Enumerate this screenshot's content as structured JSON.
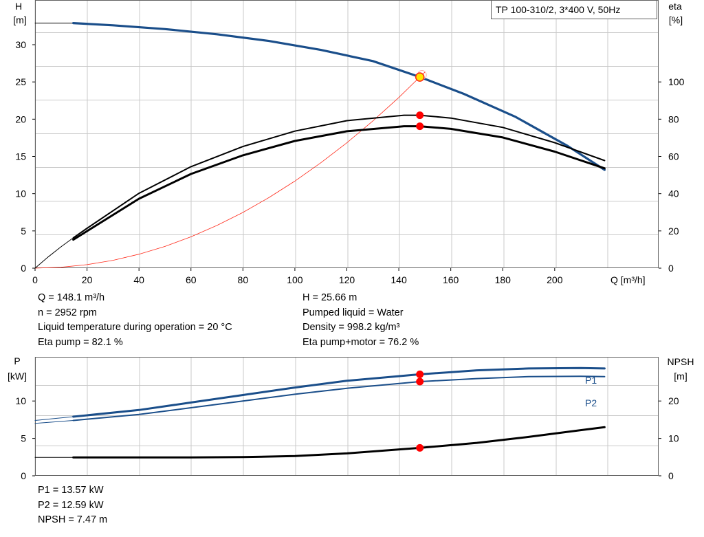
{
  "chart_data": [
    {
      "type": "line",
      "id": "head-efficiency",
      "title_box": "TP 100-310/2, 3*400 V, 50Hz",
      "y_left_label": [
        "H",
        "[m]"
      ],
      "y_right_label": [
        "eta",
        "[%]"
      ],
      "x_label": "Q [m³/h]",
      "xlim": [
        0,
        240
      ],
      "ylim_left": [
        0,
        36
      ],
      "ylim_right": [
        0,
        144
      ],
      "x_ticks": [
        "0",
        "20",
        "40",
        "60",
        "80",
        "100",
        "120",
        "140",
        "160",
        "180",
        "200"
      ],
      "x_tick_values": [
        0,
        20,
        40,
        60,
        80,
        100,
        120,
        140,
        160,
        180,
        200
      ],
      "y_left_ticks": [
        "0",
        "5",
        "10",
        "15",
        "20",
        "25",
        "30"
      ],
      "y_left_tick_values": [
        0,
        5,
        10,
        15,
        20,
        25,
        30
      ],
      "y_right_ticks": [
        "0",
        "20",
        "40",
        "60",
        "80",
        "100"
      ],
      "y_right_tick_values": [
        0,
        20,
        40,
        60,
        80,
        100
      ],
      "grid": true,
      "series": [
        {
          "role": "head-ext",
          "axis": "left",
          "color": "#000000",
          "x": [
            0,
            7,
            14.7
          ],
          "y": [
            32.9,
            32.9,
            32.9
          ]
        },
        {
          "role": "head",
          "axis": "left",
          "color": "#1a4e8a",
          "x": [
            14.7,
            30,
            50,
            70,
            90,
            110,
            130,
            148.1,
            165,
            185,
            205,
            219.2
          ],
          "y": [
            32.9,
            32.6,
            32.1,
            31.4,
            30.5,
            29.3,
            27.8,
            25.66,
            23.4,
            20.3,
            16.4,
            13.2
          ]
        },
        {
          "role": "system-curve",
          "axis": "left",
          "color": "#ff2a1a",
          "x": [
            0,
            10,
            20,
            30,
            40,
            50,
            60,
            70,
            80,
            90,
            100,
            110,
            120,
            130,
            140,
            148.1,
            150
          ],
          "y": [
            0,
            0.12,
            0.47,
            1.05,
            1.87,
            2.92,
            4.21,
            5.73,
            7.48,
            9.47,
            11.69,
            14.15,
            16.83,
            19.76,
            22.91,
            25.66,
            26.3
          ]
        },
        {
          "role": "eta-ext",
          "axis": "right",
          "color": "#000000",
          "x": [
            0,
            5,
            10,
            14.7
          ],
          "y": [
            0,
            6,
            11.5,
            16.3
          ]
        },
        {
          "role": "eta-pump",
          "axis": "right",
          "color": "#000000",
          "x": [
            14.7,
            20,
            40,
            60,
            80,
            100,
            120,
            142,
            148.1,
            160,
            180,
            200,
            219.2
          ],
          "y": [
            16.3,
            21.4,
            40.2,
            54.5,
            65.3,
            73.6,
            79.2,
            82.1,
            82.1,
            80.6,
            75.6,
            67.4,
            57.8
          ]
        },
        {
          "role": "eta-pump-motor",
          "axis": "right",
          "color": "#000000",
          "x": [
            14.7,
            20,
            40,
            60,
            80,
            100,
            120,
            142,
            148.1,
            160,
            180,
            200,
            219.2
          ],
          "y": [
            15.3,
            19.9,
            37.3,
            50.6,
            60.6,
            68.3,
            73.5,
            76.2,
            76.2,
            74.8,
            70.2,
            62.6,
            53.6
          ]
        }
      ],
      "markers": [
        {
          "x": 148.1,
          "y": 25.66,
          "axis": "left",
          "style": "operating-point"
        },
        {
          "x": 148.1,
          "y": 82.1,
          "axis": "right",
          "style": "red"
        },
        {
          "x": 148.1,
          "y": 76.2,
          "axis": "right",
          "style": "red"
        }
      ]
    },
    {
      "type": "line",
      "id": "power-npsh",
      "y_left_label": [
        "P",
        "[kW]"
      ],
      "y_right_label": [
        "NPSH",
        "[m]"
      ],
      "xlim": [
        0,
        240
      ],
      "ylim_left": [
        0,
        15.9
      ],
      "ylim_right": [
        0,
        31.8
      ],
      "y_left_ticks": [
        "0",
        "5",
        "10"
      ],
      "y_left_tick_values": [
        0,
        5,
        10
      ],
      "y_right_ticks": [
        "0",
        "10",
        "20"
      ],
      "y_right_tick_values": [
        0,
        10,
        20
      ],
      "grid": true,
      "series": [
        {
          "role": "p1-ext",
          "axis": "left",
          "color": "#1a4e8a",
          "x": [
            0,
            14.7
          ],
          "y": [
            7.4,
            7.9
          ]
        },
        {
          "role": "p1",
          "axis": "left",
          "color": "#1a4e8a",
          "name": "P1",
          "x": [
            14.7,
            40,
            60,
            80,
            100,
            120,
            148.1,
            170,
            190,
            210,
            219.2
          ],
          "y": [
            7.9,
            8.8,
            9.8,
            10.8,
            11.8,
            12.7,
            13.57,
            14.1,
            14.35,
            14.4,
            14.35
          ]
        },
        {
          "role": "p2-ext",
          "axis": "left",
          "color": "#1a4e8a",
          "x": [
            0,
            14.7
          ],
          "y": [
            7.0,
            7.4
          ]
        },
        {
          "role": "p2",
          "axis": "left",
          "color": "#1a4e8a",
          "name": "P2",
          "x": [
            14.7,
            40,
            60,
            80,
            100,
            120,
            148.1,
            170,
            190,
            210,
            219.2
          ],
          "y": [
            7.4,
            8.2,
            9.1,
            10.0,
            10.9,
            11.7,
            12.59,
            13.0,
            13.25,
            13.3,
            13.25
          ]
        },
        {
          "role": "npsh-ext",
          "axis": "right",
          "color": "#000000",
          "x": [
            0,
            14.7
          ],
          "y": [
            4.9,
            4.9
          ]
        },
        {
          "role": "npsh",
          "axis": "right",
          "color": "#000000",
          "x": [
            14.7,
            40,
            60,
            80,
            100,
            120,
            148.1,
            170,
            190,
            210,
            219.2
          ],
          "y": [
            4.9,
            4.9,
            4.9,
            5.0,
            5.3,
            6.0,
            7.47,
            8.8,
            10.4,
            12.2,
            13.0
          ]
        }
      ],
      "markers": [
        {
          "x": 148.1,
          "y": 13.57,
          "axis": "left",
          "style": "red"
        },
        {
          "x": 148.1,
          "y": 12.59,
          "axis": "left",
          "style": "red"
        },
        {
          "x": 148.1,
          "y": 7.47,
          "axis": "right",
          "style": "red"
        }
      ]
    }
  ],
  "info_top_left": [
    "Q = 148.1 m³/h",
    "n = 2952 rpm",
    "Liquid temperature during operation = 20 °C",
    "Eta pump = 82.1 %"
  ],
  "info_top_right": [
    "H = 25.66 m",
    "Pumped liquid = Water",
    "Density = 998.2 kg/m³",
    "Eta pump+motor = 76.2 %"
  ],
  "info_bottom": [
    "P1 = 13.57 kW",
    "P2 = 12.59 kW",
    "NPSH = 7.47 m"
  ],
  "colors": {
    "head": "#1a4e8a",
    "system": "#ff2a1a",
    "marker": "#ff0000",
    "grid": "#c8c8c8",
    "op_fill": "#ffe600"
  }
}
